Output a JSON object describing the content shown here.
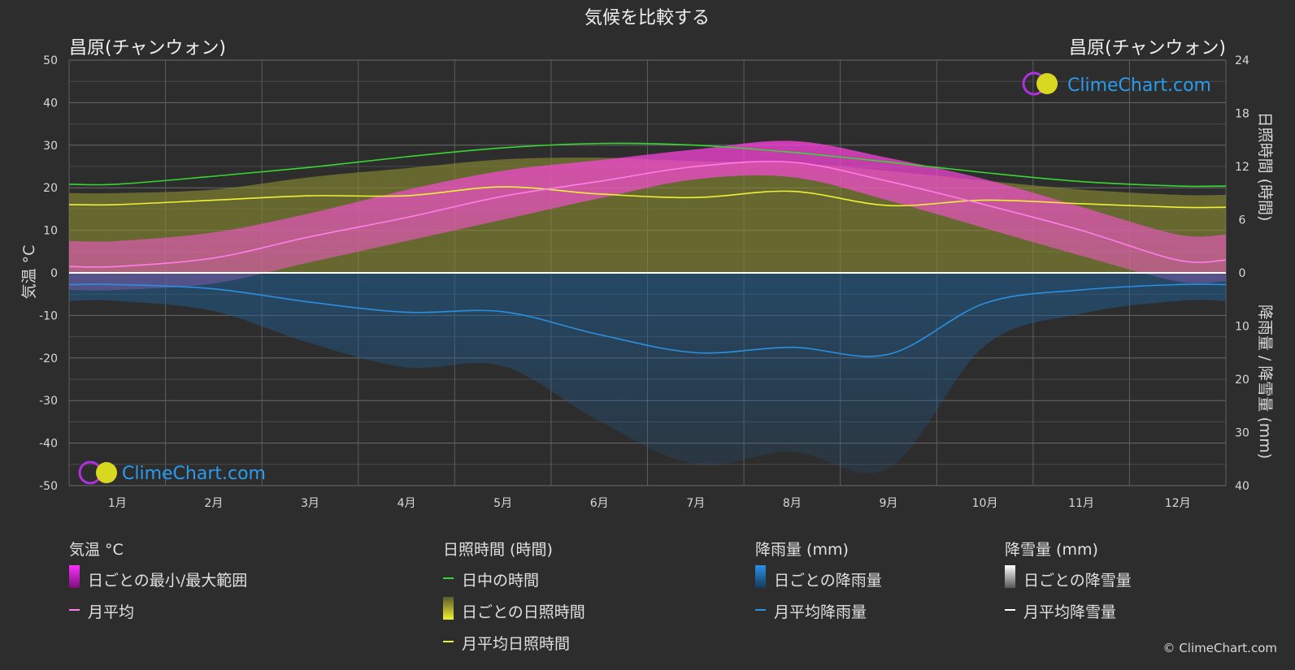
{
  "chart_data": {
    "type": "area",
    "title": "気候を比較する",
    "location_left": "昌原(チャンウォン)",
    "location_right": "昌原(チャンウォン)",
    "brand": "ClimeChart.com",
    "copyright": "© ClimeChart.com",
    "months": [
      "1月",
      "2月",
      "3月",
      "4月",
      "5月",
      "6月",
      "7月",
      "8月",
      "9月",
      "10月",
      "11月",
      "12月"
    ],
    "axes": {
      "temp": {
        "label": "気温 °C",
        "min": -50,
        "max": 50,
        "ticks": [
          50,
          40,
          30,
          20,
          10,
          0,
          -10,
          -20,
          -30,
          -40,
          -50
        ]
      },
      "sun": {
        "label": "日照時間 (時間)",
        "min": 0,
        "max": 24,
        "ticks": [
          24,
          18,
          12,
          6,
          0
        ]
      },
      "precip": {
        "label": "降雨量 / 降雪量 (mm)",
        "min": 0,
        "max": 40,
        "ticks": [
          0,
          10,
          20,
          30,
          40
        ]
      }
    },
    "series": {
      "daylight_hours": [
        10.0,
        10.9,
        11.9,
        13.1,
        14.1,
        14.6,
        14.4,
        13.6,
        12.5,
        11.3,
        10.3,
        9.8
      ],
      "sunshine_monthly_avg": [
        7.7,
        8.2,
        8.7,
        8.7,
        9.7,
        8.9,
        8.5,
        9.2,
        7.6,
        8.2,
        7.8,
        7.4
      ],
      "sunshine_daily_top": [
        9.0,
        9.4,
        10.8,
        11.8,
        12.8,
        13.0,
        12.6,
        12.4,
        11.5,
        10.4,
        9.4,
        8.8
      ],
      "temp_monthly_avg": [
        1.5,
        3.5,
        8.5,
        13.0,
        18.0,
        21.5,
        25.0,
        26.0,
        21.5,
        16.0,
        10.0,
        3.0
      ],
      "temp_daily_max": [
        7.5,
        9.5,
        14.0,
        19.5,
        24.0,
        26.5,
        29.0,
        31.0,
        27.0,
        22.0,
        15.5,
        9.0
      ],
      "temp_daily_min": [
        -4.0,
        -2.5,
        2.5,
        7.5,
        12.5,
        17.5,
        22.0,
        22.5,
        17.0,
        10.5,
        4.0,
        -2.0
      ],
      "rain_monthly_avg": [
        2.2,
        3.0,
        5.5,
        7.4,
        7.3,
        11.6,
        15.0,
        14.0,
        15.3,
        5.7,
        3.2,
        2.2
      ],
      "snow_monthly_avg": [
        0,
        0,
        0,
        0,
        0,
        0,
        0,
        0,
        0,
        0,
        0,
        0
      ]
    },
    "legend": [
      {
        "header": "気温 °C",
        "items": [
          {
            "label": "日ごとの最小/最大範囲",
            "kind": "grad",
            "color": "#e020e0"
          },
          {
            "label": "月平均",
            "kind": "line",
            "color": "#ff7ee8"
          }
        ]
      },
      {
        "header": "日照時間 (時間)",
        "items": [
          {
            "label": "日中の時間",
            "kind": "line",
            "color": "#38d630"
          },
          {
            "label": "日ごとの日照時間",
            "kind": "grad",
            "color": "#e6e62a"
          },
          {
            "label": "月平均日照時間",
            "kind": "line",
            "color": "#f0f036"
          }
        ]
      },
      {
        "header": "降雨量 (mm)",
        "items": [
          {
            "label": "日ごとの降雨量",
            "kind": "grad",
            "color": "#2a8ad8"
          },
          {
            "label": "月平均降雨量",
            "kind": "line",
            "color": "#2a8fe0"
          }
        ]
      },
      {
        "header": "降雪量 (mm)",
        "items": [
          {
            "label": "日ごとの降雪量",
            "kind": "grad",
            "color": "#ffffff"
          },
          {
            "label": "月平均降雪量",
            "kind": "line",
            "color": "#ffffff"
          }
        ]
      }
    ]
  }
}
